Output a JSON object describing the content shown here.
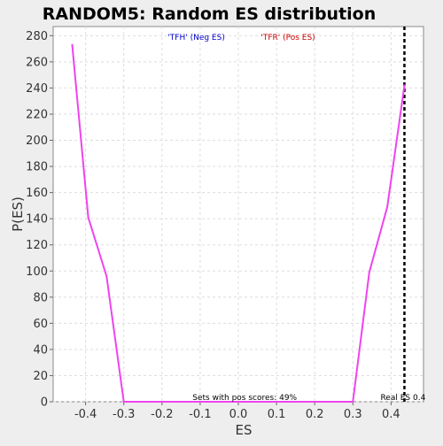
{
  "chart_data": {
    "type": "line",
    "title": "RANDOM5: Random ES distribution",
    "xlabel": "ES",
    "ylabel": "P(ES)",
    "xlim": [
      -0.485,
      0.485
    ],
    "ylim": [
      0,
      287
    ],
    "xticks": [
      -0.4,
      -0.3,
      -0.2,
      -0.1,
      0.0,
      0.1,
      0.2,
      0.3,
      0.4
    ],
    "yticks": [
      0,
      20,
      40,
      60,
      80,
      100,
      120,
      140,
      160,
      180,
      200,
      220,
      240,
      260,
      280
    ],
    "grid": true,
    "legend": {
      "position": "top",
      "entries": [
        {
          "label": "'TFH' (Neg ES)",
          "color": "#0000cc"
        },
        {
          "label": "'TFR' (Pos ES)",
          "color": "#cc0000"
        }
      ]
    },
    "series": [
      {
        "color": "#ee44ee",
        "x": [
          -0.435,
          -0.393,
          -0.345,
          -0.3,
          0.3,
          0.343,
          0.39,
          0.435
        ],
        "y": [
          273,
          141,
          96,
          0,
          0,
          99,
          149,
          242
        ]
      }
    ],
    "vline": {
      "x": 0.435,
      "label": "Real ES 0.4",
      "style": "dashed",
      "color": "#000000"
    },
    "annotation": "Sets with pos scores: 49%"
  }
}
